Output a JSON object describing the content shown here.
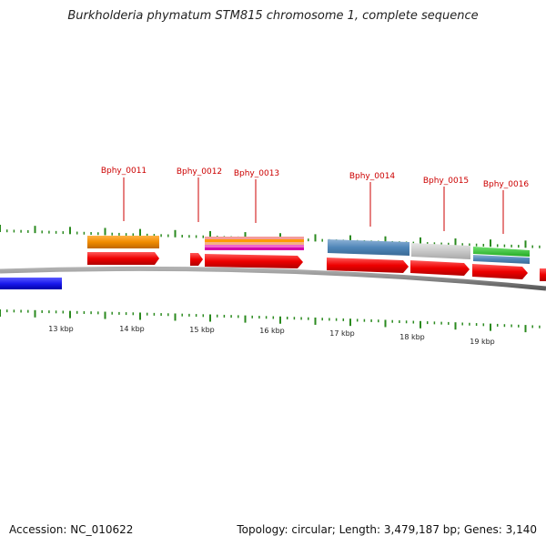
{
  "header": {
    "title": "Burkholderia phymatum STM815 chromosome 1, complete sequence"
  },
  "footer": {
    "accession": "Accession: NC_010622",
    "topology": "Topology: circular; Length: 3,479,187 bp; Genes: 3,140"
  },
  "colors": {
    "backbone": "#8a8a8a",
    "cds": "#ee0000",
    "tick": "#2a8a1e",
    "blue_feature": "#1a1aee",
    "gene_label": "#cc0000"
  },
  "scale_labels": [
    "13 kbp",
    "14 kbp",
    "15 kbp",
    "16 kbp",
    "17 kbp",
    "18 kbp",
    "19 kbp"
  ],
  "genes": [
    {
      "label": "Bphy_0011"
    },
    {
      "label": "Bphy_0012"
    },
    {
      "label": "Bphy_0013"
    },
    {
      "label": "Bphy_0014"
    },
    {
      "label": "Bphy_0015"
    },
    {
      "label": "Bphy_0016"
    }
  ]
}
